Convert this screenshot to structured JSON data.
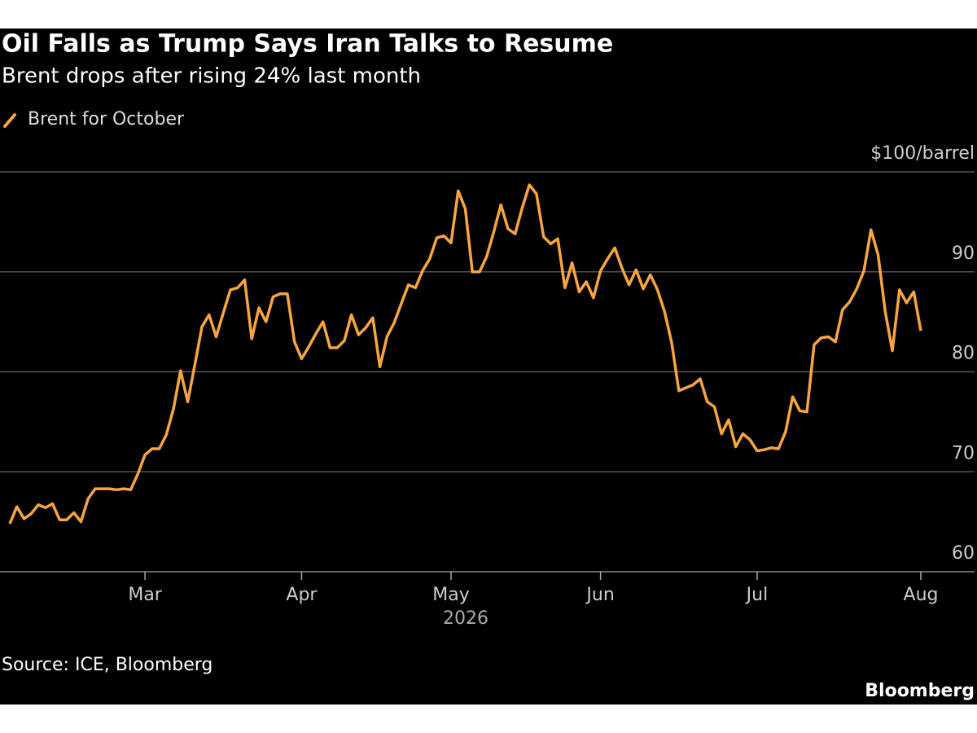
{
  "chart_data": {
    "type": "line",
    "title": "Oil Falls as Trump Says Iran Talks to Resume",
    "subtitle": "Brent drops after rising 24% last month",
    "x_label": "2026",
    "source": "Source: ICE, Bloomberg",
    "brand": "Bloomberg",
    "legend": "top-left",
    "grid": true,
    "xlim": [
      0,
      128
    ],
    "xticks": [
      {
        "value": 19,
        "label": "Mar"
      },
      {
        "value": 41,
        "label": "Apr"
      },
      {
        "value": 62,
        "label": "May"
      },
      {
        "value": 83,
        "label": "Jun"
      },
      {
        "value": 105,
        "label": "Jul"
      },
      {
        "value": 128,
        "label": "Aug"
      }
    ],
    "ylim": [
      60,
      100
    ],
    "yticks": [
      60,
      70,
      80,
      90,
      {
        "value": 100,
        "label": "$100/barrel"
      }
    ],
    "series": [
      {
        "name": "Brent for October",
        "color": "#f7a540",
        "values": [
          64.8,
          66.5,
          65.3,
          65.8,
          66.7,
          66.4,
          66.8,
          65.2,
          65.2,
          65.9,
          65.0,
          67.3,
          68.3,
          68.3,
          68.3,
          68.2,
          68.3,
          68.2,
          69.8,
          71.7,
          72.3,
          72.3,
          73.7,
          76.3,
          80.1,
          77.0,
          80.7,
          84.5,
          85.7,
          83.5,
          85.9,
          88.2,
          88.4,
          89.2,
          83.3,
          86.4,
          85.0,
          87.5,
          87.8,
          87.8,
          83.0,
          81.3,
          82.5,
          83.8,
          85.0,
          82.4,
          82.4,
          83.1,
          85.7,
          83.7,
          84.4,
          85.4,
          80.5,
          83.5,
          84.9,
          86.8,
          88.7,
          88.4,
          90.1,
          91.3,
          93.4,
          93.6,
          92.9,
          98.1,
          96.3,
          90.0,
          90.0,
          91.5,
          94.0,
          96.7,
          94.3,
          93.8,
          96.4,
          98.7,
          97.8,
          93.5,
          92.8,
          93.3,
          88.4,
          90.9,
          88.0,
          89.0,
          87.4,
          90.1,
          91.3,
          92.4,
          90.4,
          88.7,
          90.2,
          88.3,
          89.7,
          88.2,
          86.0,
          82.9,
          78.1,
          78.4,
          78.7,
          79.3,
          77.0,
          76.5,
          73.8,
          75.2,
          72.5,
          73.8,
          73.2,
          72.1,
          72.2,
          72.4,
          72.3,
          74.0,
          77.5,
          76.1,
          76.0,
          82.7,
          83.4,
          83.5,
          83.0,
          86.2,
          87.0,
          88.3,
          90.1,
          94.2,
          91.7,
          86.0,
          82.1,
          88.2,
          86.9,
          88.0,
          84.1
        ]
      }
    ]
  }
}
